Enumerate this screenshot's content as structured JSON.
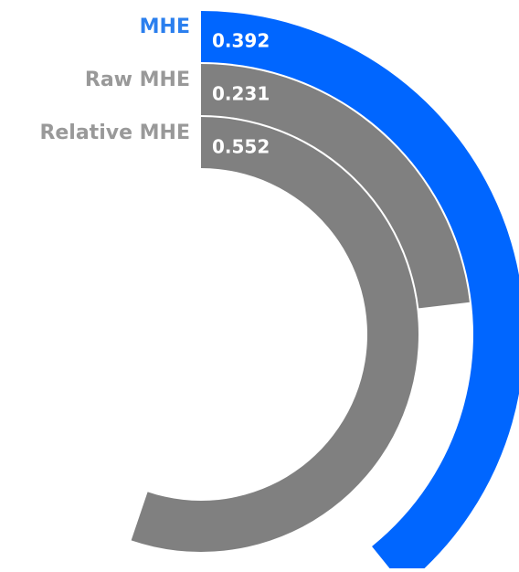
{
  "chart_data": {
    "type": "radial_bar",
    "categories": [
      "MHE",
      "Raw MHE",
      "Relative MHE"
    ],
    "values": [
      0.392,
      0.231,
      0.552
    ],
    "colors": [
      "#0066ff",
      "#808080",
      "#808080"
    ],
    "label_colors": [
      "#2b7fee",
      "#999999",
      "#999999"
    ],
    "ylim": [
      0,
      1
    ]
  }
}
